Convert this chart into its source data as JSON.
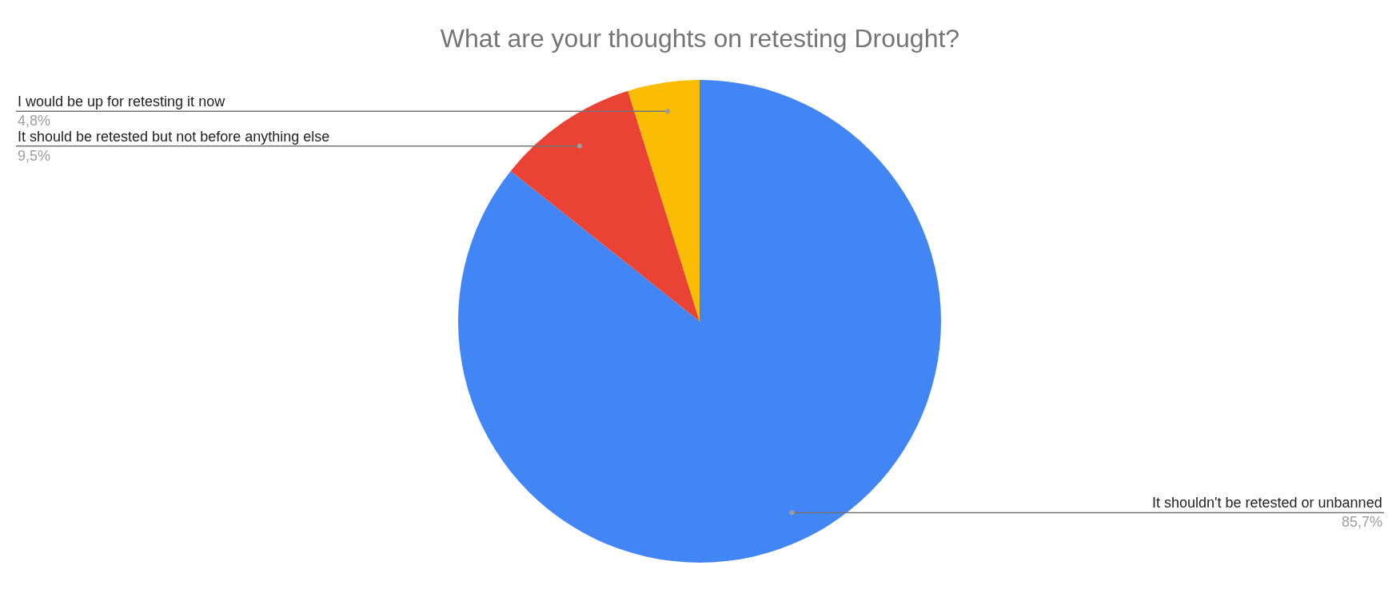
{
  "chart_data": {
    "type": "pie",
    "title": "What are your thoughts on retesting Drought?",
    "categories": [
      "It shouldn't be retested or unbanned",
      "It should be retested but not before anything else",
      "I would be up for retesting it now"
    ],
    "values": [
      85.7,
      9.5,
      4.8
    ],
    "value_labels": [
      "85,7%",
      "9,5%",
      "4,8%"
    ],
    "colors": [
      "#4285f4",
      "#ea4335",
      "#fbbc04"
    ],
    "legend": false
  }
}
